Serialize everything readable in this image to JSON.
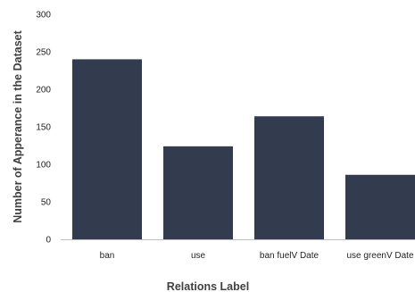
{
  "chart_data": {
    "type": "bar",
    "categories": [
      "ban",
      "use",
      "ban fuelV Date",
      "use greenV Date"
    ],
    "values": [
      240,
      124,
      164,
      86
    ],
    "xlabel": "Relations Label",
    "ylabel": "Number of Apperance in the Dataset",
    "ylim": [
      0,
      300
    ],
    "yticks": [
      0,
      50,
      100,
      150,
      200,
      250,
      300
    ],
    "grid": false,
    "bar_color": "#333c4e",
    "axis_color": "#bfbfbf"
  }
}
